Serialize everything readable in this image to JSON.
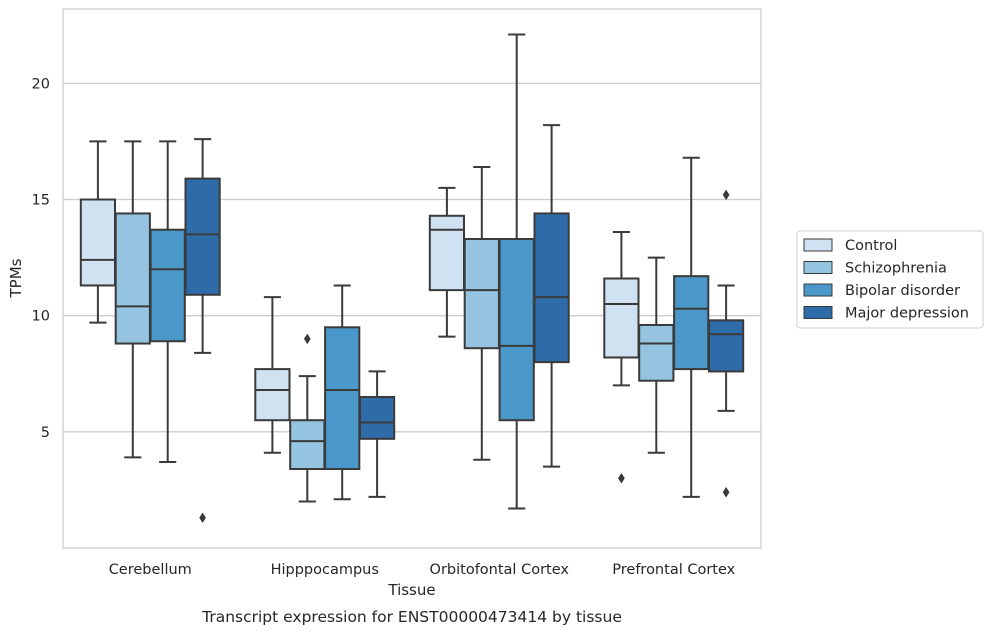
{
  "chart_data": {
    "type": "box",
    "caption": "Transcript expression for ENST00000473414 by tissue",
    "xlabel": "Tissue",
    "ylabel": "TPMs",
    "ylim": [
      0.0,
      23.2
    ],
    "yticks": [
      5,
      10,
      15,
      20
    ],
    "grid": "y",
    "legend_position": "right",
    "categories": [
      "Cerebellum",
      "Hipppocampus",
      "Orbitofontal Cortex",
      "Prefrontal Cortex"
    ],
    "series": [
      {
        "name": "Control",
        "color": "#d0e1f2",
        "boxes": [
          {
            "whislo": 9.7,
            "q1": 11.3,
            "med": 12.4,
            "q3": 15.0,
            "whishi": 17.5,
            "fliers": []
          },
          {
            "whislo": 4.1,
            "q1": 5.5,
            "med": 6.8,
            "q3": 7.7,
            "whishi": 10.8,
            "fliers": []
          },
          {
            "whislo": 9.1,
            "q1": 11.1,
            "med": 13.7,
            "q3": 14.3,
            "whishi": 15.5,
            "fliers": []
          },
          {
            "whislo": 7.0,
            "q1": 8.2,
            "med": 10.5,
            "q3": 11.6,
            "whishi": 13.6,
            "fliers": [
              3.0
            ]
          }
        ]
      },
      {
        "name": "Schizophrenia",
        "color": "#94c4df",
        "boxes": [
          {
            "whislo": 3.9,
            "q1": 8.8,
            "med": 10.4,
            "q3": 14.4,
            "whishi": 17.5,
            "fliers": []
          },
          {
            "whislo": 2.0,
            "q1": 3.4,
            "med": 4.6,
            "q3": 5.5,
            "whishi": 7.4,
            "fliers": [
              9.0
            ]
          },
          {
            "whislo": 3.8,
            "q1": 8.6,
            "med": 11.1,
            "q3": 13.3,
            "whishi": 16.4,
            "fliers": []
          },
          {
            "whislo": 4.1,
            "q1": 7.2,
            "med": 8.8,
            "q3": 9.6,
            "whishi": 12.5,
            "fliers": []
          }
        ]
      },
      {
        "name": "Bipolar disorder",
        "color": "#4a98c9",
        "boxes": [
          {
            "whislo": 3.7,
            "q1": 8.9,
            "med": 12.0,
            "q3": 13.7,
            "whishi": 17.5,
            "fliers": []
          },
          {
            "whislo": 2.1,
            "q1": 3.4,
            "med": 6.8,
            "q3": 9.5,
            "whishi": 11.3,
            "fliers": []
          },
          {
            "whislo": 1.7,
            "q1": 5.5,
            "med": 8.7,
            "q3": 13.3,
            "whishi": 22.1,
            "fliers": []
          },
          {
            "whislo": 2.2,
            "q1": 7.7,
            "med": 10.3,
            "q3": 11.7,
            "whishi": 16.8,
            "fliers": []
          }
        ]
      },
      {
        "name": "Major depression",
        "color": "#2e6ca9",
        "boxes": [
          {
            "whislo": 8.4,
            "q1": 10.9,
            "med": 13.5,
            "q3": 15.9,
            "whishi": 17.6,
            "fliers": [
              1.3
            ]
          },
          {
            "whislo": 2.2,
            "q1": 4.7,
            "med": 5.4,
            "q3": 6.5,
            "whishi": 7.6,
            "fliers": []
          },
          {
            "whislo": 3.5,
            "q1": 8.0,
            "med": 10.8,
            "q3": 14.4,
            "whishi": 18.2,
            "fliers": []
          },
          {
            "whislo": 5.9,
            "q1": 7.6,
            "med": 9.2,
            "q3": 9.8,
            "whishi": 11.3,
            "fliers": [
              15.2,
              2.4
            ]
          }
        ]
      }
    ]
  }
}
